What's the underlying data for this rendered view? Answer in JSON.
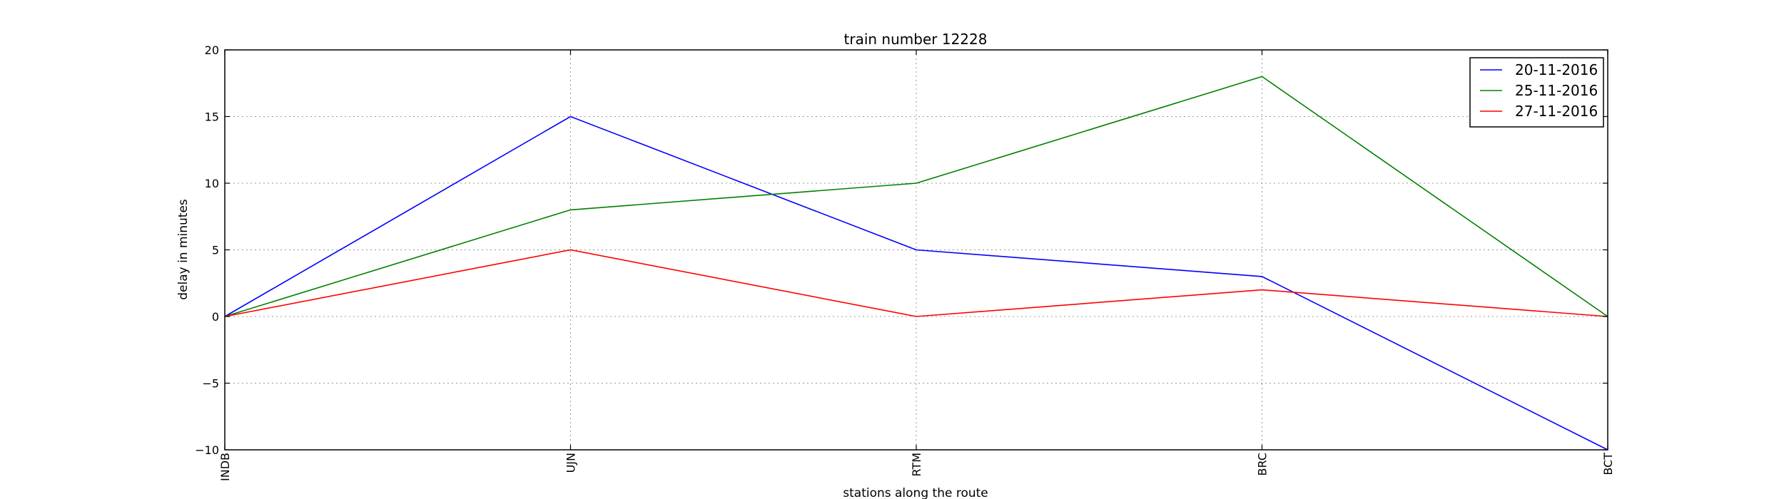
{
  "chart_data": {
    "type": "line",
    "title": "train number 12228",
    "xlabel": "stations along the route",
    "ylabel": "delay in minutes",
    "categories": [
      "INDB",
      "UJN",
      "RTM",
      "BRC",
      "BCT"
    ],
    "ylim": [
      -10,
      20
    ],
    "yticks": [
      -10,
      -5,
      0,
      5,
      10,
      15,
      20
    ],
    "grid": true,
    "legend_position": "top-right",
    "series": [
      {
        "name": "20-11-2016",
        "color": "#0000ff",
        "values": [
          0,
          15,
          5,
          3,
          -10
        ]
      },
      {
        "name": "25-11-2016",
        "color": "#008000",
        "values": [
          0,
          8,
          10,
          18,
          0
        ]
      },
      {
        "name": "27-11-2016",
        "color": "#ff0000",
        "values": [
          0,
          5,
          0,
          2,
          0
        ]
      }
    ]
  }
}
